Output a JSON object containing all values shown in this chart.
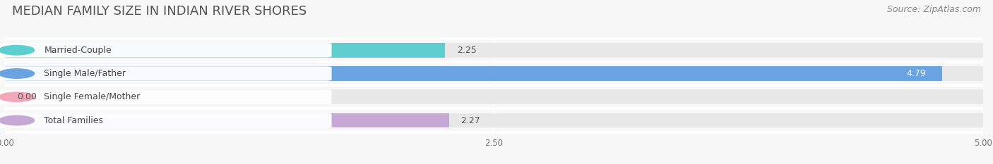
{
  "title": "MEDIAN FAMILY SIZE IN INDIAN RIVER SHORES",
  "source": "Source: ZipAtlas.com",
  "categories": [
    "Married-Couple",
    "Single Male/Father",
    "Single Female/Mother",
    "Total Families"
  ],
  "values": [
    2.25,
    4.79,
    0.0,
    2.27
  ],
  "bar_colors": [
    "#5ECECE",
    "#6BA3E0",
    "#F4A8BB",
    "#C5A8D4"
  ],
  "bar_bg_color": "#E8E8E8",
  "xlim": [
    0,
    5.0
  ],
  "xticks": [
    0.0,
    2.5,
    5.0
  ],
  "xtick_labels": [
    "0.00",
    "2.50",
    "5.00"
  ],
  "figsize": [
    14.06,
    2.33
  ],
  "dpi": 100,
  "title_fontsize": 13,
  "bar_height": 0.62,
  "label_fontsize": 9,
  "value_fontsize": 9,
  "source_fontsize": 9,
  "value_colors": [
    "#555555",
    "#ffffff",
    "#555555",
    "#555555"
  ]
}
